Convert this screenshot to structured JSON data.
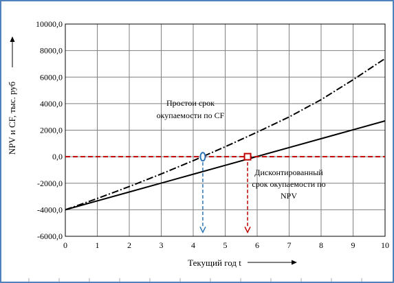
{
  "chart_data": {
    "type": "line",
    "xlabel": "Текущий год t",
    "ylabel": "NPV и CF, тыс. руб",
    "xlim": [
      0,
      10
    ],
    "ylim": [
      -6000,
      10000
    ],
    "x_ticks": [
      "0",
      "1",
      "2",
      "3",
      "4",
      "5",
      "6",
      "7",
      "8",
      "9",
      "10"
    ],
    "y_ticks": [
      "-6000,0",
      "-4000,0",
      "-2000,0",
      "0,0",
      "2000,0",
      "4000,0",
      "6000,0",
      "8000,0",
      "10000,0"
    ],
    "grid": true,
    "series": [
      {
        "style": "dash-dot",
        "color": "#000000",
        "x": [
          0,
          1,
          2,
          3,
          4,
          5,
          6,
          7,
          8,
          9,
          10
        ],
        "y": [
          -4000,
          -3150,
          -2250,
          -1300,
          -300,
          750,
          1850,
          3000,
          4300,
          5800,
          7400
        ]
      },
      {
        "style": "solid",
        "color": "#000000",
        "x": [
          0,
          1,
          2,
          3,
          4,
          5,
          6,
          7,
          8,
          9,
          10
        ],
        "y": [
          -4000,
          -3330,
          -2660,
          -1990,
          -1320,
          -650,
          20,
          690,
          1360,
          2030,
          2700
        ]
      },
      {
        "style": "dashed",
        "color": "#c00000",
        "x": [
          0,
          10
        ],
        "y": [
          0,
          0
        ]
      }
    ],
    "markers": [
      {
        "shape": "ellipse",
        "x": 4.3,
        "y": 0,
        "color": "#2e75b6"
      },
      {
        "shape": "square",
        "x": 5.7,
        "y": 0,
        "color": "#c00000"
      }
    ],
    "guides": [
      {
        "x": 4.3,
        "y_from": 0,
        "y_to": -5700,
        "color": "#2e75b6"
      },
      {
        "x": 5.7,
        "y_from": 0,
        "y_to": -5700,
        "color": "#c00000"
      }
    ],
    "annotations": [
      {
        "text": [
          "Простои срок",
          "окупаемости по CF"
        ]
      },
      {
        "text": [
          "Дисконтированный",
          "срок окупаемости по",
          "NPV"
        ]
      }
    ]
  }
}
